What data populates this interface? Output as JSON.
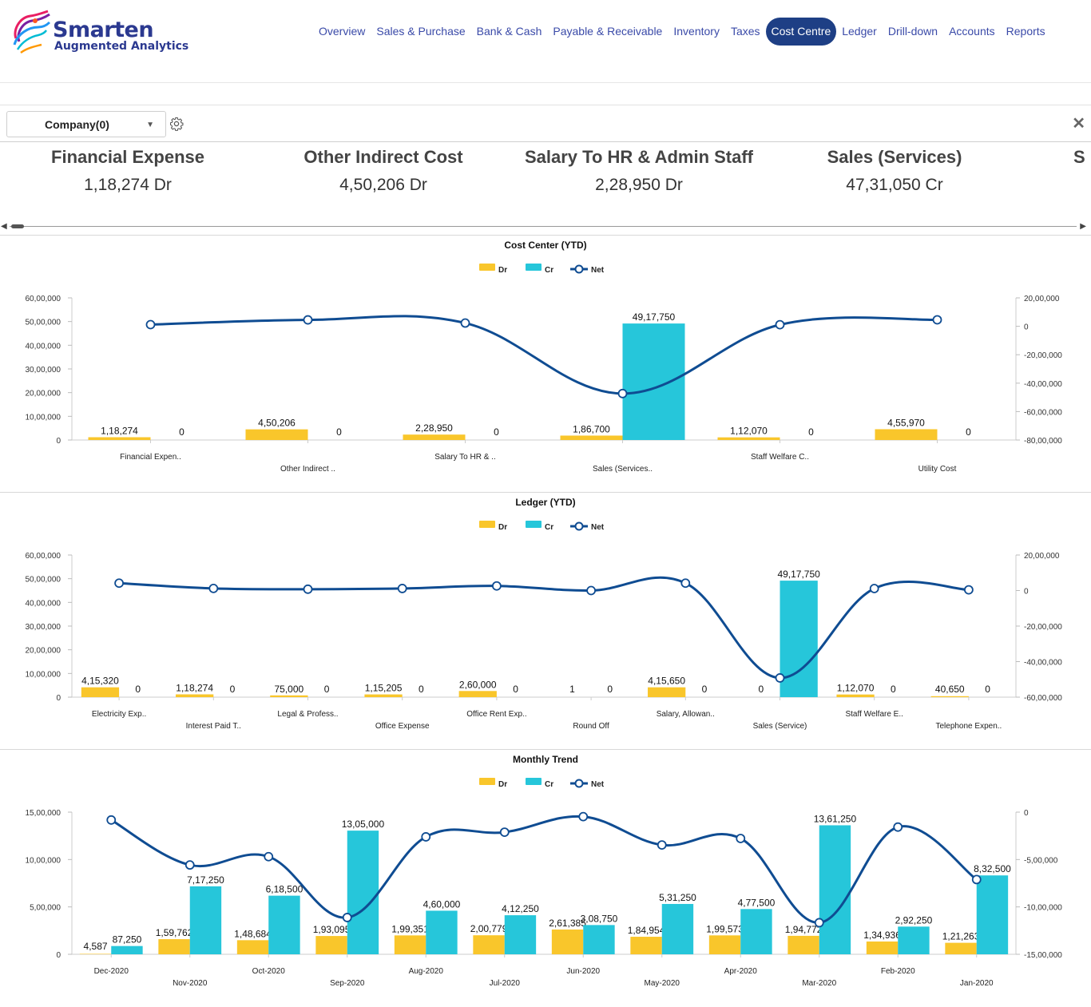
{
  "brand": {
    "name": "Smarten",
    "tagline": "Augmented Analytics"
  },
  "nav": {
    "items": [
      "Overview",
      "Sales & Purchase",
      "Bank & Cash",
      "Payable & Receivable",
      "Inventory",
      "Taxes",
      "Cost Centre",
      "Ledger",
      "Drill-down",
      "Accounts",
      "Reports"
    ],
    "active": "Cost Centre"
  },
  "filter": {
    "company_label": "Company(0)"
  },
  "kpis": [
    {
      "title": "Financial Expense",
      "value": "1,18,274 Dr"
    },
    {
      "title": "Other Indirect Cost",
      "value": "4,50,206 Dr"
    },
    {
      "title": "Salary To HR & Admin Staff",
      "value": "2,28,950 Dr"
    },
    {
      "title": "Sales (Services)",
      "value": "47,31,050 Cr"
    },
    {
      "title": "S",
      "value": ""
    }
  ],
  "colors": {
    "dr": "#f9c62b",
    "cr": "#26c6da",
    "net": "#0f4c92",
    "nav_active": "#1e3f85"
  },
  "chart_data": [
    {
      "type": "bar",
      "title": "Cost Center (YTD)",
      "legend": [
        "Dr",
        "Cr",
        "Net"
      ],
      "categories": [
        "Financial Expen..",
        "Other Indirect ..",
        "Salary To HR & ..",
        "Sales (Services..",
        "Staff Welfare C..",
        "Utility Cost"
      ],
      "series": [
        {
          "name": "Dr",
          "values": [
            118274,
            450206,
            228950,
            186700,
            112070,
            455970
          ],
          "labels": [
            "1,18,274",
            "4,50,206",
            "2,28,950",
            "1,86,700",
            "1,12,070",
            "4,55,970"
          ]
        },
        {
          "name": "Cr",
          "values": [
            0,
            0,
            0,
            4917750,
            0,
            0
          ],
          "labels": [
            "0",
            "0",
            "0",
            "49,17,750",
            "0",
            "0"
          ]
        },
        {
          "name": "Net",
          "axis": "right",
          "values": [
            118274,
            450206,
            228950,
            -4731050,
            112070,
            455970
          ]
        }
      ],
      "ylim": [
        0,
        6000000
      ],
      "y_ticks": [
        "0",
        "10,00,000",
        "20,00,000",
        "30,00,000",
        "40,00,000",
        "50,00,000",
        "60,00,000"
      ],
      "y2lim": [
        -8000000,
        2000000
      ],
      "y2_ticks": [
        "-80,00,000",
        "-60,00,000",
        "-40,00,000",
        "-20,00,000",
        "0",
        "20,00,000"
      ]
    },
    {
      "type": "bar",
      "title": "Ledger (YTD)",
      "legend": [
        "Dr",
        "Cr",
        "Net"
      ],
      "categories": [
        "Electricity Exp..",
        "Interest Paid T..",
        "Legal & Profess..",
        "Office Expense",
        "Office Rent Exp..",
        "Round Off",
        "Salary, Allowan..",
        "Sales (Service)",
        "Staff Welfare E..",
        "Telephone Expen.."
      ],
      "series": [
        {
          "name": "Dr",
          "values": [
            415320,
            118274,
            75000,
            115205,
            260000,
            1,
            415650,
            0,
            112070,
            40650
          ],
          "labels": [
            "4,15,320",
            "1,18,274",
            "75,000",
            "1,15,205",
            "2,60,000",
            "1",
            "4,15,650",
            "0",
            "1,12,070",
            "40,650"
          ]
        },
        {
          "name": "Cr",
          "values": [
            0,
            0,
            0,
            0,
            0,
            0,
            0,
            4917750,
            0,
            0
          ],
          "labels": [
            "0",
            "0",
            "0",
            "0",
            "0",
            "0",
            "0",
            "49,17,750",
            "0",
            "0"
          ]
        },
        {
          "name": "Net",
          "axis": "right",
          "values": [
            415320,
            118274,
            75000,
            115205,
            260000,
            1,
            415650,
            -4917750,
            112070,
            40650
          ]
        }
      ],
      "ylim": [
        0,
        6000000
      ],
      "y_ticks": [
        "0",
        "10,00,000",
        "20,00,000",
        "30,00,000",
        "40,00,000",
        "50,00,000",
        "60,00,000"
      ],
      "y2lim": [
        -6000000,
        2000000
      ],
      "y2_ticks": [
        "-60,00,000",
        "-40,00,000",
        "-20,00,000",
        "0",
        "20,00,000"
      ]
    },
    {
      "type": "bar",
      "title": "Monthly Trend",
      "legend": [
        "Dr",
        "Cr",
        "Net"
      ],
      "categories": [
        "Dec-2020",
        "Nov-2020",
        "Oct-2020",
        "Sep-2020",
        "Aug-2020",
        "Jul-2020",
        "Jun-2020",
        "May-2020",
        "Apr-2020",
        "Mar-2020",
        "Feb-2020",
        "Jan-2020"
      ],
      "series": [
        {
          "name": "Dr",
          "values": [
            4587,
            159762,
            148684,
            193095,
            199351,
            200779,
            261385,
            184954,
            199573,
            194772,
            134936,
            121263
          ],
          "labels": [
            "4,587",
            "1,59,762",
            "1,48,684",
            "1,93,095",
            "1,99,351",
            "2,00,779",
            "2,61,385",
            "1,84,954",
            "1,99,573",
            "1,94,772",
            "1,34,936",
            "1,21,263"
          ]
        },
        {
          "name": "Cr",
          "values": [
            87250,
            717250,
            618500,
            1305000,
            460000,
            412250,
            308750,
            531250,
            477500,
            1361250,
            292250,
            832500
          ],
          "labels": [
            "87,250",
            "7,17,250",
            "6,18,500",
            "13,05,000",
            "4,60,000",
            "4,12,250",
            "3,08,750",
            "5,31,250",
            "4,77,500",
            "13,61,250",
            "2,92,250",
            "8,32,500"
          ]
        },
        {
          "name": "Net",
          "axis": "right",
          "values": [
            -82663,
            -557488,
            -469816,
            -1111905,
            -260649,
            -211471,
            -47365,
            -346296,
            -277927,
            -1166478,
            -157314,
            -711237
          ]
        }
      ],
      "ylim": [
        0,
        1500000
      ],
      "y_ticks": [
        "0",
        "5,00,000",
        "10,00,000",
        "15,00,000"
      ],
      "y2lim": [
        -1500000,
        0
      ],
      "y2_ticks": [
        "-15,00,000",
        "-10,00,000",
        "-5,00,000",
        "0"
      ]
    }
  ]
}
